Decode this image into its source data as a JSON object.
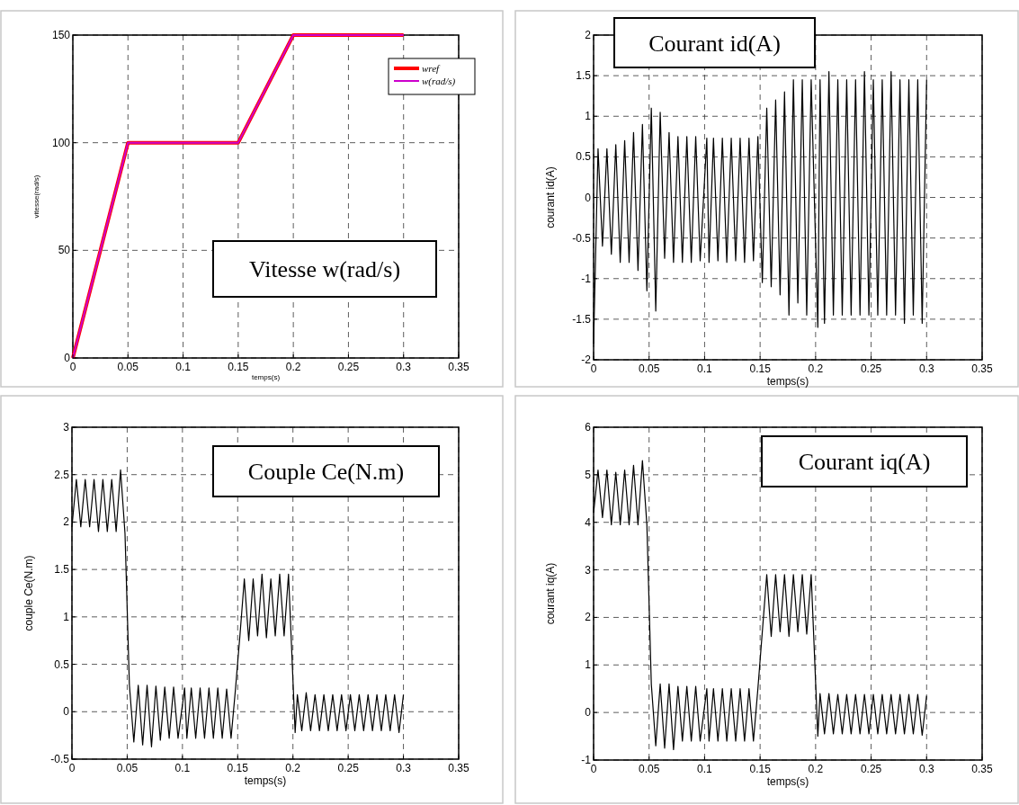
{
  "chart_data": [
    {
      "type": "line",
      "title": "Vitesse w(rad/s)",
      "xlabel": "temps(s)",
      "ylabel": "vitesse(rad/s)",
      "xlim": [
        0,
        0.35
      ],
      "xticks": [
        0,
        0.05,
        0.1,
        0.15,
        0.2,
        0.25,
        0.3,
        0.35
      ],
      "ylim": [
        0,
        150
      ],
      "yticks": [
        0,
        50,
        100,
        150
      ],
      "grid": true,
      "legend": "top right",
      "series": [
        {
          "name": "wref",
          "color": "#ff0000",
          "x": [
            0,
            0.05,
            0.15,
            0.2,
            0.3
          ],
          "values": [
            0,
            100,
            100,
            150,
            150
          ]
        },
        {
          "name": "w(rad/s)",
          "color": "#cc00cc",
          "x": [
            0,
            0.05,
            0.15,
            0.2,
            0.3
          ],
          "values": [
            0,
            100,
            100,
            150,
            150
          ]
        }
      ]
    },
    {
      "type": "line",
      "title": "Courant id(A)",
      "xlabel": "temps(s)",
      "ylabel": "courant id(A)",
      "xlim": [
        0,
        0.35
      ],
      "xticks": [
        0,
        0.05,
        0.1,
        0.15,
        0.2,
        0.25,
        0.3,
        0.35
      ],
      "ylim": [
        -2,
        2
      ],
      "yticks": [
        -2,
        -1.5,
        -1,
        -0.5,
        0,
        0.5,
        1,
        1.5,
        2
      ],
      "grid": true,
      "series": [
        {
          "color": "#000000",
          "x": [
            0,
            0.004,
            0.008,
            0.012,
            0.016,
            0.02,
            0.024,
            0.028,
            0.032,
            0.036,
            0.04,
            0.044,
            0.048,
            0.052,
            0.056,
            0.06,
            0.064,
            0.068,
            0.072,
            0.076,
            0.08,
            0.084,
            0.088,
            0.092,
            0.096,
            0.102,
            0.104,
            0.108,
            0.112,
            0.116,
            0.12,
            0.124,
            0.128,
            0.132,
            0.136,
            0.14,
            0.144,
            0.148,
            0.152,
            0.156,
            0.16,
            0.164,
            0.168,
            0.172,
            0.176,
            0.18,
            0.184,
            0.188,
            0.192,
            0.196,
            0.202,
            0.204,
            0.208,
            0.212,
            0.216,
            0.22,
            0.224,
            0.228,
            0.232,
            0.236,
            0.24,
            0.244,
            0.248,
            0.252,
            0.256,
            0.26,
            0.264,
            0.268,
            0.272,
            0.276,
            0.28,
            0.284,
            0.288,
            0.292,
            0.296,
            0.3
          ],
          "values": [
            -1.8,
            0.6,
            -0.6,
            0.6,
            -0.7,
            0.65,
            -0.8,
            0.7,
            -0.8,
            0.8,
            -0.9,
            0.9,
            -1.15,
            1.1,
            -1.4,
            1.05,
            -0.75,
            0.8,
            -0.8,
            0.75,
            -0.8,
            0.75,
            -0.8,
            0.75,
            -0.78,
            0.73,
            -0.8,
            0.73,
            -0.78,
            0.73,
            -0.8,
            0.73,
            -0.78,
            0.73,
            -0.8,
            0.73,
            -0.78,
            0.75,
            -1.05,
            1.1,
            -1.1,
            1.2,
            -1.2,
            1.3,
            -1.45,
            1.45,
            -1.3,
            1.45,
            -1.45,
            1.45,
            -1.6,
            1.45,
            -1.55,
            1.55,
            -1.45,
            1.45,
            -1.45,
            1.45,
            -1.45,
            1.45,
            -1.45,
            1.55,
            -1.45,
            1.45,
            -1.45,
            1.45,
            -1.45,
            1.55,
            -1.45,
            1.45,
            -1.55,
            1.45,
            -1.45,
            1.45,
            -1.55,
            1.45
          ]
        }
      ]
    },
    {
      "type": "line",
      "title": "Couple Ce(N.m)",
      "xlabel": "temps(s)",
      "ylabel": "couple Ce(N.m)",
      "xlim": [
        0,
        0.35
      ],
      "xticks": [
        0,
        0.05,
        0.1,
        0.15,
        0.2,
        0.25,
        0.3,
        0.35
      ],
      "ylim": [
        -0.5,
        3
      ],
      "yticks": [
        -0.5,
        0,
        0.5,
        1,
        1.5,
        2,
        2.5,
        3
      ],
      "grid": true,
      "series": [
        {
          "color": "#000000",
          "x": [
            0,
            0.004,
            0.008,
            0.012,
            0.016,
            0.02,
            0.024,
            0.028,
            0.032,
            0.036,
            0.04,
            0.044,
            0.048,
            0.052,
            0.056,
            0.06,
            0.064,
            0.068,
            0.072,
            0.076,
            0.08,
            0.084,
            0.088,
            0.092,
            0.096,
            0.102,
            0.104,
            0.108,
            0.112,
            0.116,
            0.12,
            0.124,
            0.128,
            0.132,
            0.136,
            0.14,
            0.144,
            0.148,
            0.152,
            0.156,
            0.16,
            0.164,
            0.168,
            0.172,
            0.176,
            0.18,
            0.184,
            0.188,
            0.192,
            0.196,
            0.202,
            0.204,
            0.208,
            0.212,
            0.216,
            0.22,
            0.224,
            0.228,
            0.232,
            0.236,
            0.24,
            0.244,
            0.248,
            0.252,
            0.256,
            0.26,
            0.264,
            0.268,
            0.272,
            0.276,
            0.28,
            0.284,
            0.288,
            0.292,
            0.296,
            0.3
          ],
          "values": [
            1.95,
            2.45,
            1.95,
            2.45,
            1.95,
            2.45,
            1.9,
            2.45,
            1.9,
            2.45,
            1.9,
            2.55,
            1.88,
            0.28,
            -0.32,
            0.28,
            -0.35,
            0.28,
            -0.37,
            0.27,
            -0.3,
            0.26,
            -0.28,
            0.26,
            -0.28,
            0.25,
            -0.28,
            0.25,
            -0.28,
            0.25,
            -0.28,
            0.25,
            -0.28,
            0.25,
            -0.28,
            0.24,
            -0.28,
            0.24,
            0.8,
            1.4,
            0.75,
            1.4,
            0.8,
            1.45,
            0.78,
            1.4,
            0.8,
            1.45,
            0.8,
            1.45,
            -0.22,
            0.18,
            -0.2,
            0.2,
            -0.2,
            0.18,
            -0.2,
            0.18,
            -0.2,
            0.18,
            -0.2,
            0.18,
            -0.2,
            0.18,
            -0.2,
            0.18,
            -0.2,
            0.18,
            -0.2,
            0.18,
            -0.2,
            0.18,
            -0.2,
            0.18,
            -0.22,
            0.18
          ]
        }
      ]
    },
    {
      "type": "line",
      "title": "Courant iq(A)",
      "xlabel": "temps(s)",
      "ylabel": "courant iq(A)",
      "xlim": [
        0,
        0.35
      ],
      "xticks": [
        0,
        0.05,
        0.1,
        0.15,
        0.2,
        0.25,
        0.3,
        0.35
      ],
      "ylim": [
        -1,
        6
      ],
      "yticks": [
        -1,
        0,
        1,
        2,
        3,
        4,
        5,
        6
      ],
      "grid": true,
      "series": [
        {
          "color": "#000000",
          "x": [
            0,
            0.004,
            0.008,
            0.012,
            0.016,
            0.02,
            0.024,
            0.028,
            0.032,
            0.036,
            0.04,
            0.044,
            0.048,
            0.052,
            0.056,
            0.06,
            0.064,
            0.068,
            0.072,
            0.076,
            0.08,
            0.084,
            0.088,
            0.092,
            0.096,
            0.102,
            0.104,
            0.108,
            0.112,
            0.116,
            0.12,
            0.124,
            0.128,
            0.132,
            0.136,
            0.14,
            0.144,
            0.148,
            0.152,
            0.156,
            0.16,
            0.164,
            0.168,
            0.172,
            0.176,
            0.18,
            0.184,
            0.188,
            0.192,
            0.196,
            0.202,
            0.204,
            0.208,
            0.212,
            0.216,
            0.22,
            0.224,
            0.228,
            0.232,
            0.236,
            0.24,
            0.244,
            0.248,
            0.252,
            0.256,
            0.26,
            0.264,
            0.268,
            0.272,
            0.276,
            0.28,
            0.284,
            0.288,
            0.292,
            0.296,
            0.3
          ],
          "values": [
            4.2,
            5.1,
            4.1,
            5.1,
            3.95,
            5.05,
            3.95,
            5.1,
            3.95,
            5.2,
            3.95,
            5.3,
            3.95,
            0.6,
            -0.7,
            0.6,
            -0.75,
            0.6,
            -0.78,
            0.55,
            -0.6,
            0.55,
            -0.6,
            0.55,
            -0.6,
            0.5,
            -0.6,
            0.5,
            -0.6,
            0.5,
            -0.6,
            0.5,
            -0.6,
            0.5,
            -0.6,
            0.5,
            -0.6,
            0.5,
            1.7,
            2.9,
            1.6,
            2.9,
            1.7,
            2.9,
            1.6,
            2.9,
            1.7,
            2.9,
            1.65,
            2.9,
            -0.5,
            0.4,
            -0.45,
            0.4,
            -0.45,
            0.38,
            -0.45,
            0.38,
            -0.45,
            0.38,
            -0.45,
            0.38,
            -0.45,
            0.38,
            -0.45,
            0.38,
            -0.45,
            0.38,
            -0.45,
            0.38,
            -0.45,
            0.38,
            -0.45,
            0.38,
            -0.48,
            0.35
          ]
        }
      ]
    }
  ]
}
